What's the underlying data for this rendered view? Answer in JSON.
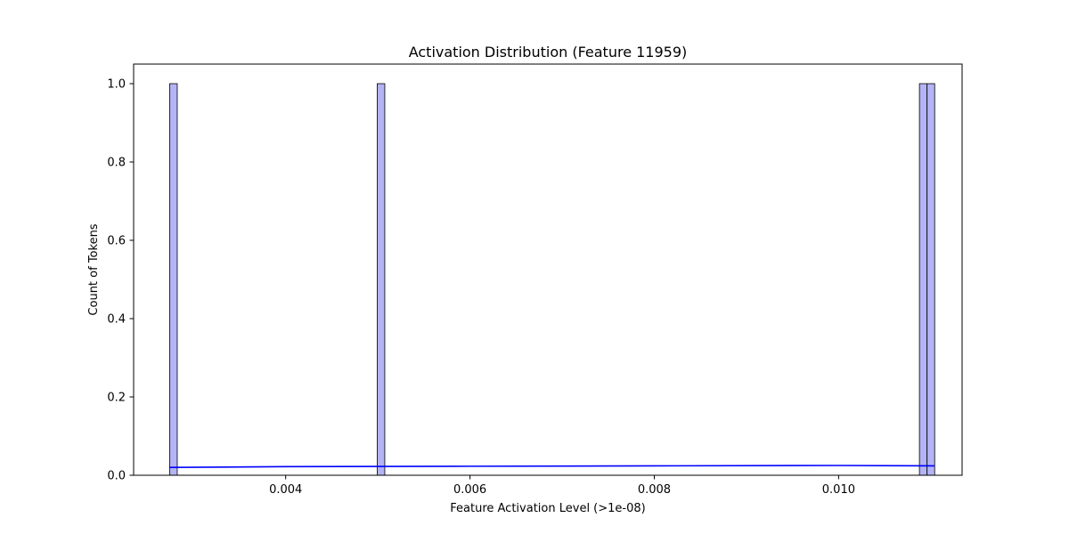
{
  "chart_data": {
    "type": "bar",
    "title": "Activation Distribution (Feature 11959)",
    "xlabel": "Feature Activation Level (>1e-08)",
    "ylabel": "Count of Tokens",
    "xlim": [
      0.00235,
      0.01134
    ],
    "ylim": [
      0,
      1.05
    ],
    "x_ticks": [
      0.004,
      0.006,
      0.008,
      0.01
    ],
    "x_tick_labels": [
      "0.004",
      "0.006",
      "0.008",
      "0.010"
    ],
    "y_ticks": [
      0.0,
      0.2,
      0.4,
      0.6,
      0.8,
      1.0
    ],
    "y_tick_labels": [
      "0.0",
      "0.2",
      "0.4",
      "0.6",
      "0.8",
      "1.0"
    ],
    "bin_width": 8.25e-05,
    "bins": [
      {
        "x_start": 0.002741,
        "count": 1
      },
      {
        "x_start": 0.004993,
        "count": 1
      },
      {
        "x_start": 0.010877,
        "count": 1
      },
      {
        "x_start": 0.01096,
        "count": 1
      }
    ],
    "kde": {
      "x": [
        0.00274,
        0.004,
        0.006,
        0.008,
        0.01,
        0.01104
      ],
      "y": [
        0.02,
        0.022,
        0.023,
        0.024,
        0.025,
        0.024
      ]
    },
    "bar_fill": "#b3b3f5",
    "bar_edge": "#000000",
    "kde_color": "#0000ff",
    "grid": false,
    "legend": "none"
  }
}
